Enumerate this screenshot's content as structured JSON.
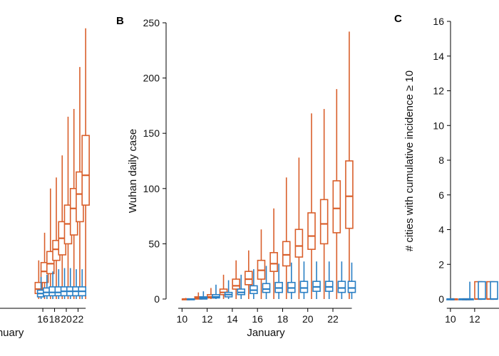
{
  "colors": {
    "orange": "#d95f2b",
    "blue": "#2a7fc4"
  },
  "panels": {
    "A": {
      "xlabel": "January"
    },
    "B": {
      "label": "B",
      "xlabel": "January",
      "ylabel": "Wuhan daily case"
    },
    "C": {
      "label": "C",
      "ylabel": "# cities with cumulative incidence ≥ 10"
    }
  },
  "chart_data": [
    {
      "panel": "A (partially visible)",
      "type": "box",
      "xlabel": "January",
      "xlim": [
        8.7,
        23.4
      ],
      "ylim": [
        0,
        250
      ],
      "xticks": [
        16,
        18,
        20,
        22
      ],
      "series": [
        {
          "name": "orange",
          "boxes": [
            {
              "x": 15.3,
              "min": 0,
              "q1": 5,
              "median": 9,
              "q3": 15,
              "max": 35
            },
            {
              "x": 16.3,
              "min": 0,
              "q1": 15,
              "median": 25,
              "q3": 33,
              "max": 60
            },
            {
              "x": 17.3,
              "min": 0,
              "q1": 23,
              "median": 32,
              "q3": 43,
              "max": 100
            },
            {
              "x": 18.3,
              "min": 0,
              "q1": 35,
              "median": 45,
              "q3": 53,
              "max": 110
            },
            {
              "x": 19.3,
              "min": 0,
              "q1": 40,
              "median": 55,
              "q3": 70,
              "max": 130
            },
            {
              "x": 20.3,
              "min": 0,
              "q1": 50,
              "median": 68,
              "q3": 85,
              "max": 165
            },
            {
              "x": 21.3,
              "min": 0,
              "q1": 58,
              "median": 82,
              "q3": 100,
              "max": 172
            },
            {
              "x": 22.3,
              "min": 0,
              "q1": 70,
              "median": 95,
              "q3": 115,
              "max": 210
            },
            {
              "x": 23.3,
              "min": 0,
              "q1": 85,
              "median": 112,
              "q3": 148,
              "max": 245
            }
          ]
        },
        {
          "name": "blue",
          "boxes": [
            {
              "x": 15.7,
              "min": 0,
              "q1": 2,
              "median": 5,
              "q3": 8,
              "max": 20
            },
            {
              "x": 16.7,
              "min": 0,
              "q1": 3,
              "median": 6,
              "q3": 10,
              "max": 22
            },
            {
              "x": 17.7,
              "min": 0,
              "q1": 3,
              "median": 6,
              "q3": 11,
              "max": 25
            },
            {
              "x": 18.7,
              "min": 0,
              "q1": 3,
              "median": 6,
              "q3": 11,
              "max": 27
            },
            {
              "x": 19.7,
              "min": 0,
              "q1": 3,
              "median": 7,
              "q3": 11,
              "max": 28
            },
            {
              "x": 20.7,
              "min": 0,
              "q1": 3,
              "median": 7,
              "q3": 11,
              "max": 28
            },
            {
              "x": 21.7,
              "min": 0,
              "q1": 3,
              "median": 7,
              "q3": 11,
              "max": 27
            },
            {
              "x": 22.7,
              "min": 0,
              "q1": 3,
              "median": 7,
              "q3": 11,
              "max": 27
            }
          ]
        }
      ]
    },
    {
      "panel": "B",
      "type": "box",
      "title": "",
      "xlabel": "January",
      "ylabel": "Wuhan daily case",
      "xlim": [
        9.3,
        23.7
      ],
      "ylim": [
        0,
        250
      ],
      "xticks": [
        10,
        12,
        14,
        16,
        18,
        20,
        22
      ],
      "yticks": [
        0,
        50,
        100,
        150,
        200,
        250
      ],
      "series": [
        {
          "name": "orange",
          "boxes": [
            {
              "x": 10.3,
              "min": 0,
              "q1": 0,
              "median": 0,
              "q3": 0,
              "max": 1
            },
            {
              "x": 11.3,
              "min": 0,
              "q1": 0,
              "median": 1,
              "q3": 2,
              "max": 6
            },
            {
              "x": 12.3,
              "min": 0,
              "q1": 1,
              "median": 2,
              "q3": 4,
              "max": 10
            },
            {
              "x": 13.3,
              "min": 0,
              "q1": 4,
              "median": 6,
              "q3": 9,
              "max": 22
            },
            {
              "x": 14.3,
              "min": 0,
              "q1": 9,
              "median": 12,
              "q3": 18,
              "max": 35
            },
            {
              "x": 15.3,
              "min": 0,
              "q1": 13,
              "median": 18,
              "q3": 25,
              "max": 44
            },
            {
              "x": 16.3,
              "min": 0,
              "q1": 18,
              "median": 26,
              "q3": 35,
              "max": 63
            },
            {
              "x": 17.3,
              "min": 0,
              "q1": 25,
              "median": 32,
              "q3": 42,
              "max": 82
            },
            {
              "x": 18.3,
              "min": 0,
              "q1": 30,
              "median": 40,
              "q3": 52,
              "max": 110
            },
            {
              "x": 19.3,
              "min": 0,
              "q1": 38,
              "median": 48,
              "q3": 63,
              "max": 128
            },
            {
              "x": 20.3,
              "min": 0,
              "q1": 45,
              "median": 57,
              "q3": 78,
              "max": 168
            },
            {
              "x": 21.3,
              "min": 0,
              "q1": 50,
              "median": 68,
              "q3": 90,
              "max": 172
            },
            {
              "x": 22.3,
              "min": 0,
              "q1": 60,
              "median": 82,
              "q3": 107,
              "max": 190
            },
            {
              "x": 23.3,
              "min": 0,
              "q1": 64,
              "median": 93,
              "q3": 125,
              "max": 242
            }
          ]
        },
        {
          "name": "blue",
          "boxes": [
            {
              "x": 10.7,
              "min": 0,
              "q1": 0,
              "median": 0,
              "q3": 0,
              "max": 0
            },
            {
              "x": 11.7,
              "min": 0,
              "q1": 0,
              "median": 1,
              "q3": 2,
              "max": 7
            },
            {
              "x": 12.7,
              "min": 0,
              "q1": 1,
              "median": 2,
              "q3": 4,
              "max": 13
            },
            {
              "x": 13.7,
              "min": 0,
              "q1": 2,
              "median": 4,
              "q3": 6,
              "max": 17
            },
            {
              "x": 14.7,
              "min": 0,
              "q1": 4,
              "median": 6,
              "q3": 9,
              "max": 22
            },
            {
              "x": 15.7,
              "min": 0,
              "q1": 5,
              "median": 8,
              "q3": 12,
              "max": 27
            },
            {
              "x": 16.7,
              "min": 0,
              "q1": 6,
              "median": 9,
              "q3": 14,
              "max": 30
            },
            {
              "x": 17.7,
              "min": 0,
              "q1": 6,
              "median": 10,
              "q3": 15,
              "max": 32
            },
            {
              "x": 18.7,
              "min": 0,
              "q1": 6,
              "median": 10,
              "q3": 15,
              "max": 33
            },
            {
              "x": 19.7,
              "min": 0,
              "q1": 6,
              "median": 10,
              "q3": 16,
              "max": 34
            },
            {
              "x": 20.7,
              "min": 0,
              "q1": 7,
              "median": 11,
              "q3": 16,
              "max": 34
            },
            {
              "x": 21.7,
              "min": 0,
              "q1": 7,
              "median": 11,
              "q3": 16,
              "max": 34
            },
            {
              "x": 22.7,
              "min": 0,
              "q1": 6,
              "median": 10,
              "q3": 16,
              "max": 34
            },
            {
              "x": 23.5,
              "min": 0,
              "q1": 6,
              "median": 10,
              "q3": 16,
              "max": 33
            }
          ]
        }
      ]
    },
    {
      "panel": "C (partially visible)",
      "type": "box",
      "xlabel": "",
      "ylabel": "# cities with cumulative incidence ≥ 10",
      "xlim": [
        9.3,
        14.6
      ],
      "ylim": [
        0,
        16
      ],
      "xticks": [
        10,
        12
      ],
      "yticks": [
        0,
        2,
        4,
        6,
        8,
        10,
        12,
        14,
        16
      ],
      "series": [
        {
          "name": "orange",
          "boxes": [
            {
              "x": 10.3,
              "min": 0,
              "q1": 0,
              "median": 0,
              "q3": 0,
              "max": 0
            },
            {
              "x": 11.3,
              "min": 0,
              "q1": 0,
              "median": 0,
              "q3": 0,
              "max": 0
            },
            {
              "x": 12.3,
              "min": 0,
              "q1": 0,
              "median": 0,
              "q3": 1,
              "max": 1
            },
            {
              "x": 13.3,
              "min": 0,
              "q1": 0,
              "median": 0,
              "q3": 1,
              "max": 1
            }
          ]
        },
        {
          "name": "blue",
          "boxes": [
            {
              "x": 10.0,
              "min": 0,
              "q1": 0,
              "median": 0,
              "q3": 0,
              "max": 0
            },
            {
              "x": 11.0,
              "min": 0,
              "q1": 0,
              "median": 0,
              "q3": 0,
              "max": 0
            },
            {
              "x": 11.6,
              "min": 0,
              "q1": 0,
              "median": 0,
              "q3": 0,
              "max": 1
            },
            {
              "x": 12.6,
              "min": 0,
              "q1": 0,
              "median": 0,
              "q3": 1,
              "max": 1
            },
            {
              "x": 13.6,
              "min": 0,
              "q1": 0,
              "median": 0,
              "q3": 1,
              "max": 1
            }
          ]
        }
      ]
    }
  ]
}
